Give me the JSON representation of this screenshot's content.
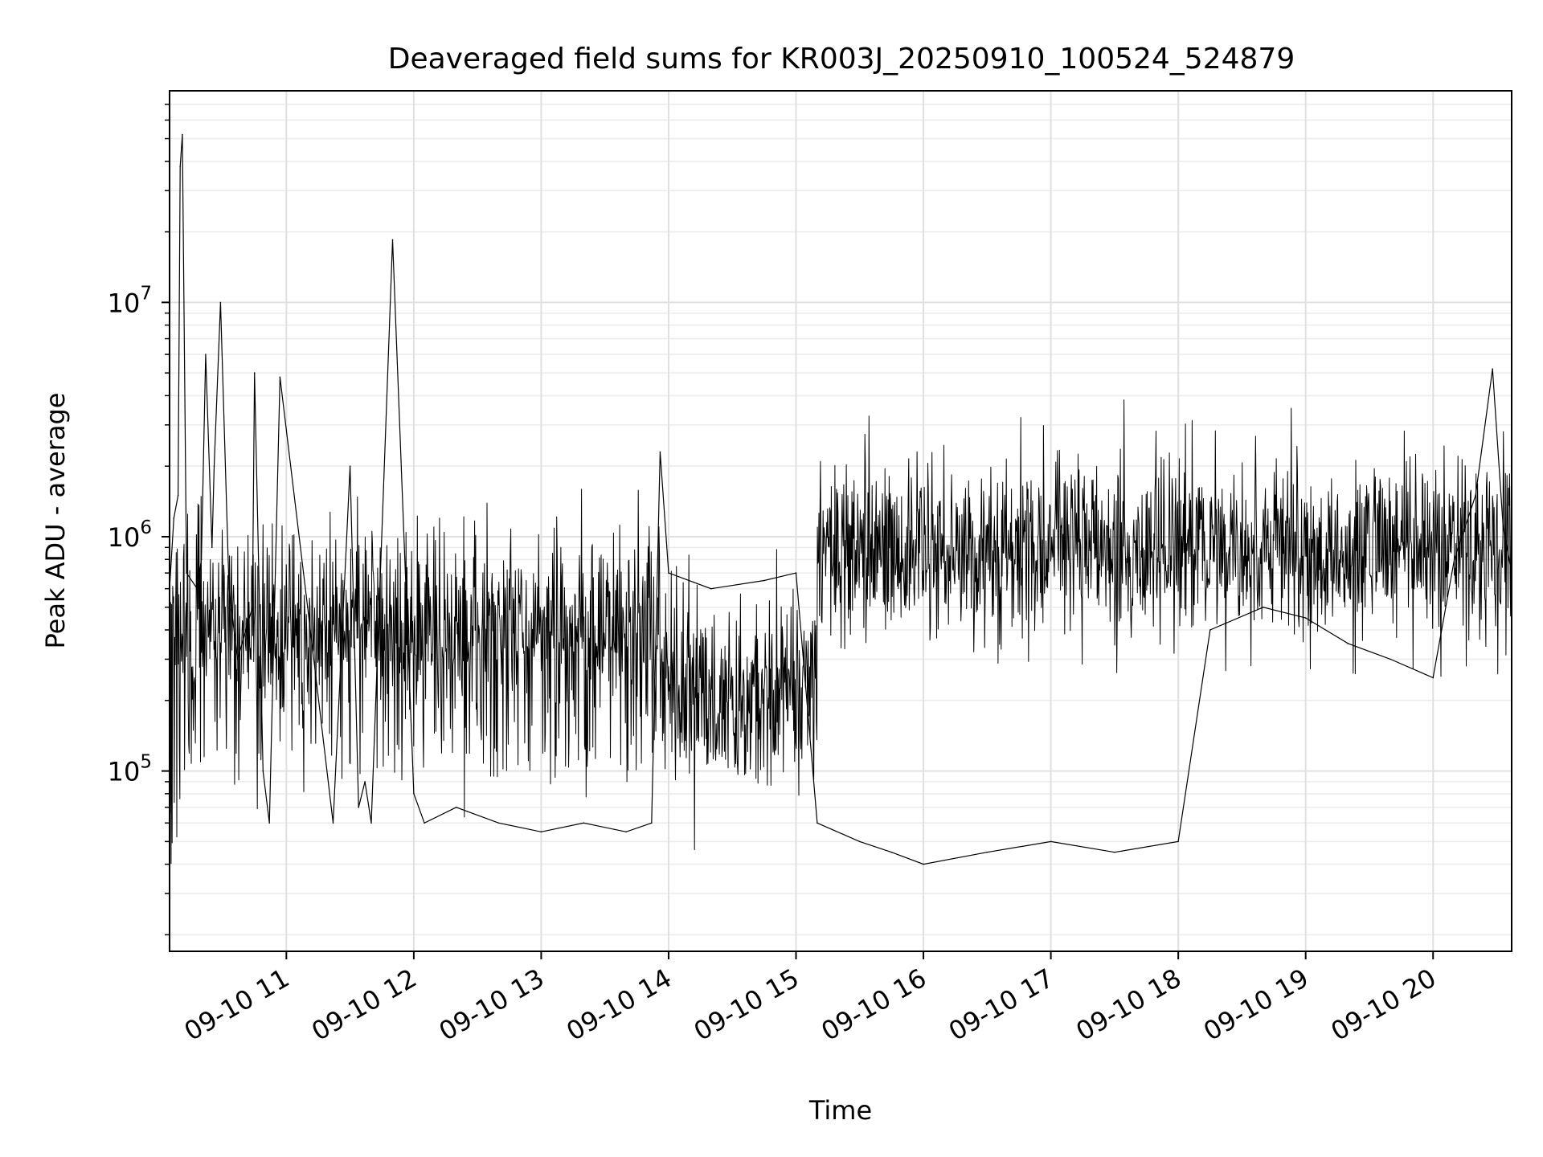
{
  "chart_data": {
    "type": "line",
    "title": "Deaveraged field sums for KR003J_20250910_100524_524879",
    "xlabel": "Time",
    "ylabel": "Peak ADU - average",
    "x_scale": "time",
    "y_scale": "log",
    "grid": true,
    "legend": "none",
    "line_color": "#000000",
    "xlim": [
      "2025-09-10 10:05",
      "2025-09-10 20:37"
    ],
    "ylim": [
      17000,
      80000000
    ],
    "x_ticks": [
      {
        "t": "2025-09-10 11:00",
        "label": "09-10 11"
      },
      {
        "t": "2025-09-10 12:00",
        "label": "09-10 12"
      },
      {
        "t": "2025-09-10 13:00",
        "label": "09-10 13"
      },
      {
        "t": "2025-09-10 14:00",
        "label": "09-10 14"
      },
      {
        "t": "2025-09-10 15:00",
        "label": "09-10 15"
      },
      {
        "t": "2025-09-10 16:00",
        "label": "09-10 16"
      },
      {
        "t": "2025-09-10 17:00",
        "label": "09-10 17"
      },
      {
        "t": "2025-09-10 18:00",
        "label": "09-10 18"
      },
      {
        "t": "2025-09-10 19:00",
        "label": "09-10 19"
      },
      {
        "t": "2025-09-10 20:00",
        "label": "09-10 20"
      }
    ],
    "y_ticks": [
      {
        "value": 100000,
        "base": "10",
        "exp": "5"
      },
      {
        "value": 1000000,
        "base": "10",
        "exp": "6"
      },
      {
        "value": 10000000,
        "base": "10",
        "exp": "7"
      }
    ],
    "series": [
      {
        "x": [
          "2025-09-10 10:05",
          "2025-09-10 10:07",
          "2025-09-10 10:09",
          "2025-09-10 10:10",
          "2025-09-10 10:11",
          "2025-09-10 10:13",
          "2025-09-10 10:18",
          "2025-09-10 10:20",
          "2025-09-10 10:22",
          "2025-09-10 10:25",
          "2025-09-10 10:26",
          "2025-09-10 10:29",
          "2025-09-10 10:33",
          "2025-09-10 10:37",
          "2025-09-10 10:44",
          "2025-09-10 10:45",
          "2025-09-10 10:49",
          "2025-09-10 10:52",
          "2025-09-10 10:57",
          "2025-09-10 11:10",
          "2025-09-10 11:22",
          "2025-09-10 11:30",
          "2025-09-10 11:34",
          "2025-09-10 11:37",
          "2025-09-10 11:40",
          "2025-09-10 11:50",
          "2025-09-10 12:00",
          "2025-09-10 12:05",
          "2025-09-10 12:20",
          "2025-09-10 12:40",
          "2025-09-10 13:00",
          "2025-09-10 13:20",
          "2025-09-10 13:40",
          "2025-09-10 13:52",
          "2025-09-10 13:56",
          "2025-09-10 14:00",
          "2025-09-10 14:20",
          "2025-09-10 14:45",
          "2025-09-10 15:00",
          "2025-09-10 15:10",
          "2025-09-10 15:30",
          "2025-09-10 15:45",
          "2025-09-10 16:00",
          "2025-09-10 16:30",
          "2025-09-10 17:00",
          "2025-09-10 17:30",
          "2025-09-10 18:00",
          "2025-09-10 18:15",
          "2025-09-10 18:40",
          "2025-09-10 19:00",
          "2025-09-10 19:20",
          "2025-09-10 19:40",
          "2025-09-10 20:00",
          "2025-09-10 20:10",
          "2025-09-10 20:20",
          "2025-09-10 20:28",
          "2025-09-10 20:33",
          "2025-09-10 20:37"
        ],
        "y": [
          600000,
          1200000,
          1500000,
          38000000,
          52000000,
          700000,
          600000,
          800000,
          6000000,
          900000,
          2000000,
          10000000,
          600000,
          300000,
          500000,
          5000000,
          100000,
          60000,
          4800000,
          500000,
          60000,
          2000000,
          70000,
          90000,
          60000,
          18500000,
          80000,
          60000,
          70000,
          60000,
          55000,
          60000,
          55000,
          60000,
          2300000,
          700000,
          600000,
          650000,
          700000,
          60000,
          50000,
          45000,
          40000,
          45000,
          50000,
          45000,
          50000,
          400000,
          500000,
          450000,
          350000,
          300000,
          250000,
          800000,
          1500000,
          5200000,
          1100000,
          700000
        ]
      }
    ]
  }
}
